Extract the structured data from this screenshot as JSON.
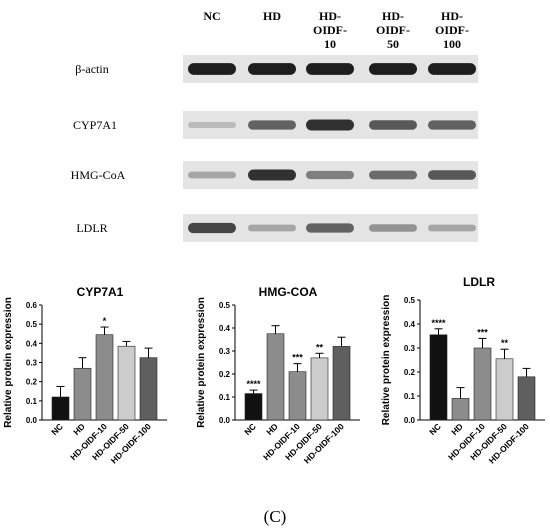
{
  "blot": {
    "lanes": [
      "NC",
      "HD",
      "HD-\nOIDF-\n10",
      "HD-\nOIDF-\n50",
      "HD-\nOIDF-\n100"
    ],
    "rows": [
      {
        "name": "β-actin",
        "intensity": [
          0.95,
          0.95,
          0.95,
          0.95,
          0.95
        ]
      },
      {
        "name": "CYP7A1",
        "intensity": [
          0.15,
          0.6,
          0.85,
          0.65,
          0.6
        ]
      },
      {
        "name": "HMG-CoA",
        "intensity": [
          0.25,
          0.85,
          0.45,
          0.55,
          0.65
        ]
      },
      {
        "name": "LDLR",
        "intensity": [
          0.75,
          0.25,
          0.6,
          0.35,
          0.25
        ]
      }
    ]
  },
  "chart_data": [
    {
      "type": "bar",
      "title": "CYP7A1",
      "ylabel": "Relative protein expression",
      "categories": [
        "NC",
        "HD",
        "HD-OIDF-10",
        "HD-OIDF-50",
        "HD-OIDF-100"
      ],
      "values": [
        0.12,
        0.27,
        0.445,
        0.385,
        0.325
      ],
      "errors": [
        0.055,
        0.055,
        0.04,
        0.025,
        0.05
      ],
      "significance": [
        "",
        "",
        "*",
        "",
        ""
      ],
      "ylim": [
        0,
        0.6
      ],
      "yticks": [
        "0.0",
        "0.1",
        "0.2",
        "0.3",
        "0.4",
        "0.5",
        "0.6"
      ],
      "colors": [
        "#111111",
        "#8c8c8c",
        "#8c8c8c",
        "#cccccc",
        "#5f5f5f"
      ]
    },
    {
      "type": "bar",
      "title": "HMG-COA",
      "ylabel": "Relative protein expression",
      "categories": [
        "NC",
        "HD",
        "HD-OIDF-10",
        "HD-OIDF-50",
        "HD-OIDF-100"
      ],
      "values": [
        0.115,
        0.375,
        0.21,
        0.27,
        0.32
      ],
      "errors": [
        0.015,
        0.035,
        0.035,
        0.02,
        0.04
      ],
      "significance": [
        "****",
        "",
        "***",
        "**",
        ""
      ],
      "ylim": [
        0,
        0.5
      ],
      "yticks": [
        "0.0",
        "0.1",
        "0.2",
        "0.3",
        "0.4",
        "0.5"
      ],
      "colors": [
        "#111111",
        "#8c8c8c",
        "#8c8c8c",
        "#cccccc",
        "#5f5f5f"
      ]
    },
    {
      "type": "bar",
      "title": "LDLR",
      "ylabel": "Relative protein expression",
      "categories": [
        "NC",
        "HD",
        "HD-OIDF-10",
        "HD-OIDF-50",
        "HD-OIDF-100"
      ],
      "values": [
        0.355,
        0.09,
        0.3,
        0.255,
        0.18
      ],
      "errors": [
        0.025,
        0.045,
        0.04,
        0.04,
        0.035
      ],
      "significance": [
        "****",
        "",
        "***",
        "**",
        ""
      ],
      "ylim": [
        0,
        0.5
      ],
      "yticks": [
        "0.0",
        "0.1",
        "0.2",
        "0.3",
        "0.4",
        "0.5"
      ],
      "colors": [
        "#111111",
        "#8c8c8c",
        "#8c8c8c",
        "#cccccc",
        "#5f5f5f"
      ]
    }
  ],
  "caption": "(C)"
}
